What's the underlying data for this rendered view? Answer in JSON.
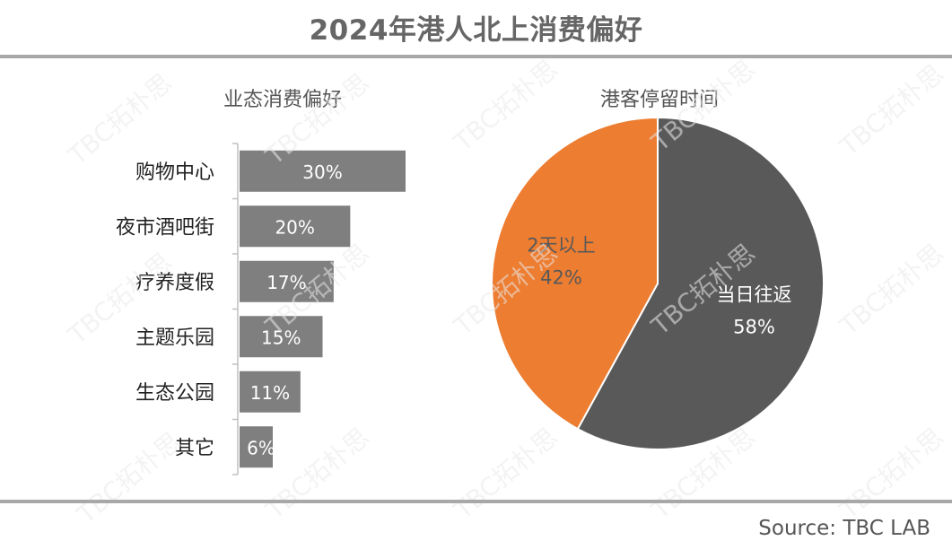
{
  "page": {
    "title": "2024年港人北上消费偏好",
    "source": "Source: TBC LAB",
    "watermark": "TBC拓朴思"
  },
  "colors": {
    "bar": "#7f7f7f",
    "pie_dark": "#595959",
    "pie_orange": "#ed7d31",
    "rule": "#a8a8a8",
    "label_white": "#ffffff",
    "label_dark": "#595959"
  },
  "chart_data": [
    {
      "type": "bar",
      "orientation": "horizontal",
      "title": "业态消费偏好",
      "categories": [
        "购物中心",
        "夜市酒吧街",
        "疗养度假",
        "主题乐园",
        "生态公园",
        "其它"
      ],
      "values": [
        30,
        20,
        17,
        15,
        11,
        6
      ],
      "value_labels": [
        "30%",
        "20%",
        "17%",
        "15%",
        "11%",
        "6%"
      ],
      "unit": "%",
      "xlim": [
        0,
        30
      ]
    },
    {
      "type": "pie",
      "title": "港客停留时间",
      "slices": [
        {
          "label": "当日往返",
          "value": 58,
          "value_label": "58%",
          "color": "#595959"
        },
        {
          "label": "2天以上",
          "value": 42,
          "value_label": "42%",
          "color": "#ed7d31"
        }
      ]
    }
  ]
}
